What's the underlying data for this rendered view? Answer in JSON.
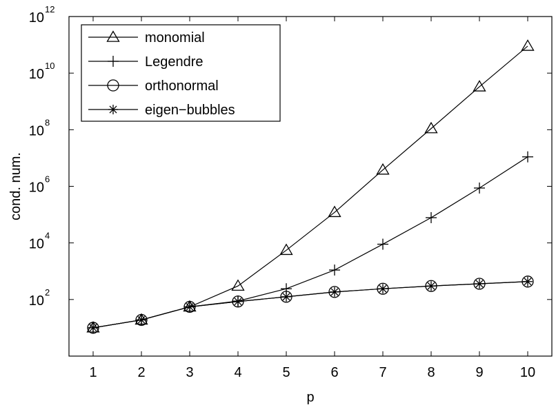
{
  "chart_data": {
    "type": "line",
    "title": "",
    "xlabel": "p",
    "ylabel": "cond. num.",
    "x": [
      1,
      2,
      3,
      4,
      5,
      6,
      7,
      8,
      9,
      10
    ],
    "xlim": [
      0.5,
      10.5
    ],
    "ylim": [
      1,
      1000000000000
    ],
    "yscale": "log",
    "x_ticks": [
      "1",
      "2",
      "3",
      "4",
      "5",
      "6",
      "7",
      "8",
      "9",
      "10"
    ],
    "y_ticks": [
      {
        "base": "10",
        "exp": "2",
        "value": 100
      },
      {
        "base": "10",
        "exp": "4",
        "value": 10000
      },
      {
        "base": "10",
        "exp": "6",
        "value": 1000000
      },
      {
        "base": "10",
        "exp": "8",
        "value": 100000000
      },
      {
        "base": "10",
        "exp": "10",
        "value": 10000000000
      },
      {
        "base": "10",
        "exp": "12",
        "value": 1000000000000
      }
    ],
    "grid": false,
    "legend_position": "top-left",
    "series": [
      {
        "name": "monomial",
        "marker": "triangle",
        "values": [
          10,
          19,
          55,
          300,
          5500,
          120000,
          3800000,
          110000000,
          3300000000,
          90000000000
        ]
      },
      {
        "name": "Legendre",
        "marker": "plus",
        "values": [
          10,
          19,
          55,
          88,
          240,
          1100,
          9000,
          78000,
          870000,
          11000000
        ]
      },
      {
        "name": "orthonormal",
        "marker": "circle",
        "values": [
          10,
          19,
          55,
          85,
          125,
          185,
          240,
          300,
          360,
          430
        ]
      },
      {
        "name": "eigen−bubbles",
        "marker": "star",
        "values": [
          10,
          19,
          55,
          85,
          125,
          185,
          240,
          300,
          360,
          430
        ]
      }
    ]
  }
}
